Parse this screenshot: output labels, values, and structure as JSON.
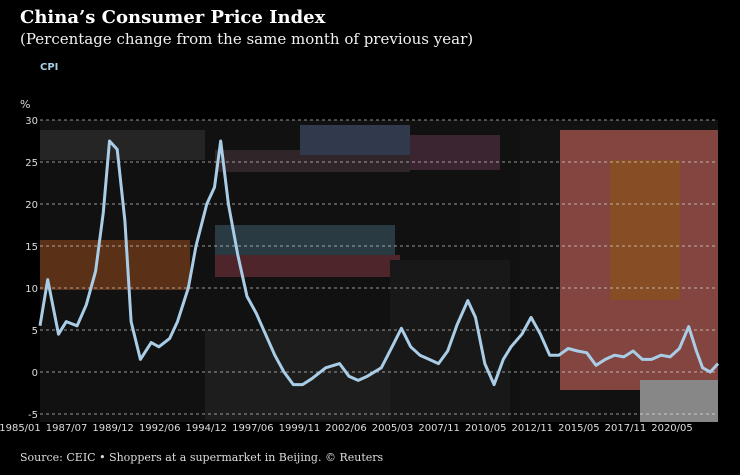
{
  "title": "China’s Consumer Price Index",
  "subtitle": "(Percentage change from the same month of previous year)",
  "legend": "CPI",
  "unit_label": "%",
  "source": "Source: CEIC • Shoppers at a supermarket in Beijing. © Reuters",
  "colors": {
    "line": "#a9cde6",
    "background": "#000000",
    "grid": "#ffffff"
  },
  "chart_data": {
    "type": "line",
    "title": "China’s Consumer Price Index",
    "subtitle": "(Percentage change from the same month of previous year)",
    "ylabel": "%",
    "ylim": [
      -5,
      30
    ],
    "yticks": [
      -5,
      0,
      5,
      10,
      15,
      20,
      25,
      30
    ],
    "grid": "horizontal dashed",
    "legend": "top-left",
    "xticks": [
      "1985/01",
      "1987/07",
      "1989/12",
      "1992/06",
      "1994/12",
      "1997/06",
      "1999/11",
      "2002/06",
      "2005/03",
      "2007/11",
      "2010/05",
      "2012/11",
      "2015/05",
      "2017/11",
      "2020/05"
    ],
    "series": [
      {
        "name": "CPI",
        "x": [
          "1985/01",
          "1985/06",
          "1986/01",
          "1986/06",
          "1987/01",
          "1987/07",
          "1988/01",
          "1988/06",
          "1988/10",
          "1989/03",
          "1989/08",
          "1989/12",
          "1990/06",
          "1991/01",
          "1991/06",
          "1992/01",
          "1992/06",
          "1993/01",
          "1993/06",
          "1994/01",
          "1994/06",
          "1994/10",
          "1995/03",
          "1995/09",
          "1996/03",
          "1996/09",
          "1997/03",
          "1997/09",
          "1998/03",
          "1998/09",
          "1999/03",
          "1999/09",
          "2000/06",
          "2001/03",
          "2001/09",
          "2002/03",
          "2002/09",
          "2003/06",
          "2004/01",
          "2004/07",
          "2005/01",
          "2005/07",
          "2006/01",
          "2006/07",
          "2007/01",
          "2007/07",
          "2008/02",
          "2008/07",
          "2009/01",
          "2009/07",
          "2010/01",
          "2010/06",
          "2011/01",
          "2011/07",
          "2012/01",
          "2012/07",
          "2013/01",
          "2013/07",
          "2014/01",
          "2014/07",
          "2015/01",
          "2015/07",
          "2016/01",
          "2016/07",
          "2017/01",
          "2017/07",
          "2018/01",
          "2018/07",
          "2019/01",
          "2019/07",
          "2020/01",
          "2020/06",
          "2020/10",
          "2021/03",
          "2021/08"
        ],
        "values": [
          5.5,
          11.0,
          4.5,
          6.0,
          5.5,
          8.0,
          12.0,
          19.0,
          27.5,
          26.5,
          18.0,
          6.0,
          1.5,
          3.5,
          3.0,
          4.0,
          6.0,
          10.0,
          15.0,
          20.0,
          22.0,
          27.5,
          20.0,
          14.0,
          9.0,
          7.0,
          4.5,
          2.0,
          0.0,
          -1.5,
          -1.5,
          -0.8,
          0.5,
          1.0,
          -0.5,
          -1.0,
          -0.5,
          0.5,
          3.0,
          5.2,
          3.0,
          2.0,
          1.5,
          1.0,
          2.5,
          5.6,
          8.5,
          6.5,
          1.0,
          -1.5,
          1.5,
          3.0,
          4.5,
          6.5,
          4.5,
          2.0,
          2.0,
          2.8,
          2.5,
          2.3,
          0.8,
          1.5,
          2.0,
          1.8,
          2.5,
          1.5,
          1.5,
          2.0,
          1.8,
          2.8,
          5.4,
          2.5,
          0.5,
          0.0,
          1.0
        ]
      }
    ]
  }
}
